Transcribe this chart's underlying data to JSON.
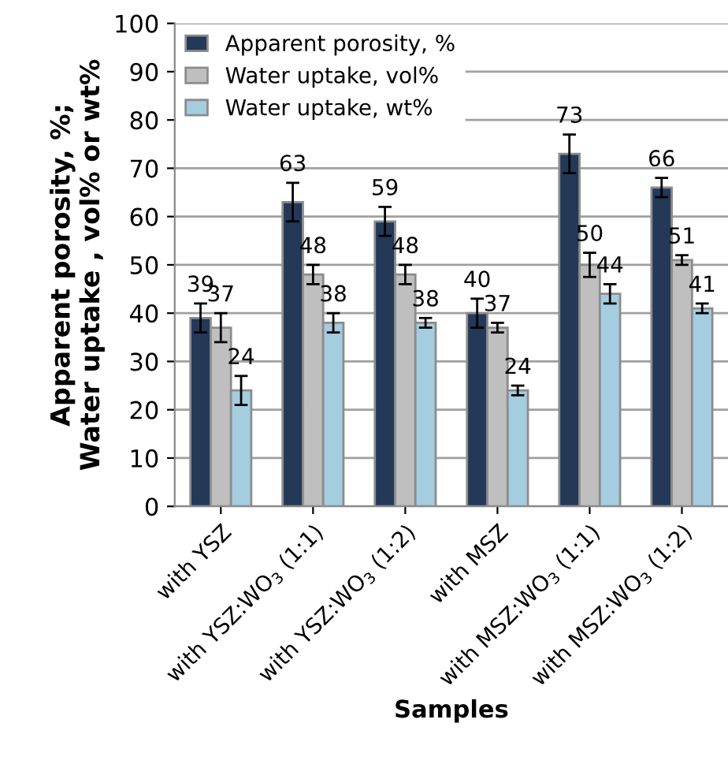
{
  "chart_data": {
    "type": "bar",
    "xlabel": "Samples",
    "ylabel": "Apparent porosity, %;\nWater uptake , vol% or wt%",
    "categories": [
      "with YSZ",
      "with YSZ:WO$_{3}$ (1:1)",
      "with YSZ:WO$_{3}$ (1:2)",
      "with MSZ",
      "with MSZ:WO$_{3}$ (1:1)",
      "with MSZ:WO$_{3}$ (1:2)"
    ],
    "series": [
      {
        "name": "Apparent porosity, %",
        "color": "#243858",
        "values": [
          39,
          63,
          59,
          40,
          73,
          66
        ],
        "errors": [
          3,
          4,
          3,
          3,
          4,
          2
        ]
      },
      {
        "name": "Water uptake, vol%",
        "color": "#bfbfbf",
        "values": [
          37,
          48,
          48,
          37,
          50,
          51
        ],
        "errors": [
          3,
          2,
          2,
          1,
          2.5,
          1
        ]
      },
      {
        "name": "Water uptake, wt%",
        "color": "#a5cde0",
        "values": [
          24,
          38,
          38,
          24,
          44,
          41
        ],
        "errors": [
          3,
          2,
          1,
          1,
          2,
          1
        ]
      }
    ],
    "ylim": [
      0,
      100
    ],
    "yticks": [
      0,
      10,
      20,
      30,
      40,
      50,
      60,
      70,
      80,
      90,
      100
    ],
    "grid": "y",
    "legend": "top left",
    "data_labels": true
  }
}
